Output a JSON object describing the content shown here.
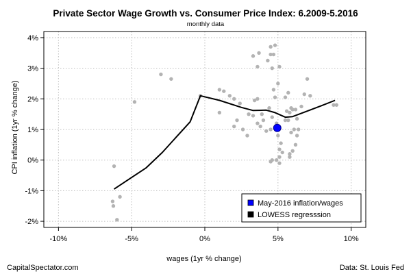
{
  "chart_data": {
    "type": "scatter",
    "title": "Private Sector Wage Growth vs. Consumer Price Index: 6.2009-5.2016",
    "subtitle": "monthly data",
    "xlabel": "wages (1yr % change)",
    "ylabel": "CPI inflation (1yr % change)",
    "xlim": [
      -11,
      11
    ],
    "ylim": [
      -2.2,
      4.2
    ],
    "x_ticks": [
      -10,
      -5,
      0,
      5,
      10
    ],
    "x_tick_labels": [
      "-10%",
      "-5%",
      "0%",
      "5%",
      "10%"
    ],
    "y_ticks": [
      -2,
      -1,
      0,
      1,
      2,
      3,
      4
    ],
    "y_tick_labels": [
      "-2%",
      "-1%",
      "0%",
      "1%",
      "2%",
      "3%",
      "4%"
    ],
    "grid": true,
    "legend_position": "bottom-right",
    "series": [
      {
        "kind": "points",
        "color": "#b3b3b3",
        "points": [
          [
            -6.2,
            -0.2
          ],
          [
            -6.0,
            -1.95
          ],
          [
            -6.3,
            -1.35
          ],
          [
            -6.25,
            -1.5
          ],
          [
            -5.8,
            -1.2
          ],
          [
            -4.8,
            1.9
          ],
          [
            -3.0,
            2.8
          ],
          [
            -2.3,
            2.65
          ],
          [
            -0.3,
            2.1
          ],
          [
            1.0,
            2.3
          ],
          [
            1.3,
            2.25
          ],
          [
            1.7,
            2.1
          ],
          [
            2.0,
            2.0
          ],
          [
            1.0,
            1.55
          ],
          [
            2.4,
            1.85
          ],
          [
            2.0,
            1.1
          ],
          [
            2.2,
            1.3
          ],
          [
            2.6,
            1.0
          ],
          [
            2.9,
            0.8
          ],
          [
            3.0,
            1.5
          ],
          [
            3.3,
            3.4
          ],
          [
            3.7,
            3.5
          ],
          [
            3.6,
            3.05
          ],
          [
            3.6,
            2.0
          ],
          [
            3.4,
            1.95
          ],
          [
            3.3,
            1.45
          ],
          [
            3.6,
            1.2
          ],
          [
            3.8,
            1.1
          ],
          [
            4.0,
            1.3
          ],
          [
            4.2,
            0.95
          ],
          [
            4.5,
            1.0
          ],
          [
            3.9,
            1.5
          ],
          [
            4.3,
            3.25
          ],
          [
            4.5,
            3.7
          ],
          [
            4.5,
            3.45
          ],
          [
            4.7,
            3.45
          ],
          [
            4.8,
            3.75
          ],
          [
            4.6,
            3.0
          ],
          [
            4.8,
            2.05
          ],
          [
            5.0,
            2.5
          ],
          [
            5.1,
            3.05
          ],
          [
            4.7,
            2.3
          ],
          [
            4.4,
            1.7
          ],
          [
            4.6,
            1.4
          ],
          [
            4.9,
            1.2
          ],
          [
            5.0,
            0.8
          ],
          [
            5.2,
            0.55
          ],
          [
            5.1,
            0.35
          ],
          [
            5.3,
            0.25
          ],
          [
            5.1,
            0.1
          ],
          [
            4.6,
            0.0
          ],
          [
            4.9,
            0.0
          ],
          [
            5.1,
            -0.1
          ],
          [
            4.5,
            -0.05
          ],
          [
            5.5,
            1.3
          ],
          [
            5.6,
            1.6
          ],
          [
            5.7,
            1.3
          ],
          [
            5.9,
            1.7
          ],
          [
            5.8,
            1.55
          ],
          [
            6.0,
            1.65
          ],
          [
            6.2,
            1.65
          ],
          [
            5.9,
            0.9
          ],
          [
            6.1,
            1.0
          ],
          [
            5.8,
            0.2
          ],
          [
            6.0,
            0.3
          ],
          [
            6.2,
            0.5
          ],
          [
            6.3,
            0.8
          ],
          [
            5.8,
            0.1
          ],
          [
            5.5,
            2.05
          ],
          [
            5.7,
            2.2
          ],
          [
            6.8,
            2.15
          ],
          [
            7.2,
            2.1
          ],
          [
            7.0,
            2.65
          ],
          [
            6.6,
            1.75
          ],
          [
            8.8,
            1.8
          ],
          [
            9.0,
            1.8
          ],
          [
            6.3,
            1.35
          ],
          [
            6.4,
            1.0
          ]
        ]
      },
      {
        "name": "LOWESS regresssion",
        "kind": "line",
        "color": "#000000",
        "points": [
          [
            -6.2,
            -0.95
          ],
          [
            -4.0,
            -0.25
          ],
          [
            -2.9,
            0.25
          ],
          [
            -1.0,
            1.25
          ],
          [
            -0.3,
            2.1
          ],
          [
            1.0,
            1.95
          ],
          [
            2.5,
            1.72
          ],
          [
            3.3,
            1.62
          ],
          [
            4.2,
            1.63
          ],
          [
            4.8,
            1.55
          ],
          [
            5.5,
            1.4
          ],
          [
            6.0,
            1.42
          ],
          [
            7.0,
            1.6
          ],
          [
            8.0,
            1.78
          ],
          [
            8.9,
            1.95
          ]
        ]
      },
      {
        "name": "May-2016 inflation/wages",
        "kind": "highlight",
        "color": "#0000ff",
        "points": [
          [
            4.95,
            1.05
          ]
        ]
      }
    ],
    "footer_left": "CapitalSpectator.com",
    "footer_right": "Data: St. Louis Fed"
  }
}
